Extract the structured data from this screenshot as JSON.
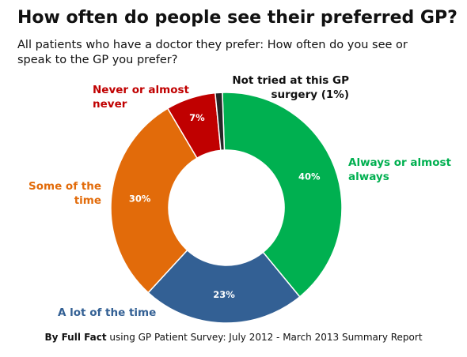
{
  "title": "How often do people see their preferred GP?",
  "subtitle": "All patients who have a doctor they prefer: How often do you see or speak to the GP you prefer?",
  "source": {
    "bold": "By Full Fact",
    "rest": "using GP Patient Survey: July 2012 - March 2013 Summary Report"
  },
  "chart_data": {
    "type": "pie",
    "donut": true,
    "title": "How often do people see their preferred GP?",
    "slices": [
      {
        "label_lines": [
          "Always or almost",
          "always"
        ],
        "value": 40,
        "value_label": "40%",
        "color": "#00b050"
      },
      {
        "label_lines": [
          "A lot of the time"
        ],
        "value": 23,
        "value_label": "23%",
        "color": "#336094"
      },
      {
        "label_lines": [
          "Some of the",
          "time"
        ],
        "value": 30,
        "value_label": "30%",
        "color": "#e26b0a"
      },
      {
        "label_lines": [
          "Never or almost",
          "never"
        ],
        "value": 7,
        "value_label": "7%",
        "color": "#c00000"
      },
      {
        "label_lines": [
          "Not tried at this GP",
          "surgery (1%)"
        ],
        "value": 1,
        "value_label": "",
        "color": "#262626"
      }
    ],
    "label_text_colors": [
      "#00b050",
      "#336094",
      "#e26b0a",
      "#c00000",
      "#111111"
    ]
  }
}
